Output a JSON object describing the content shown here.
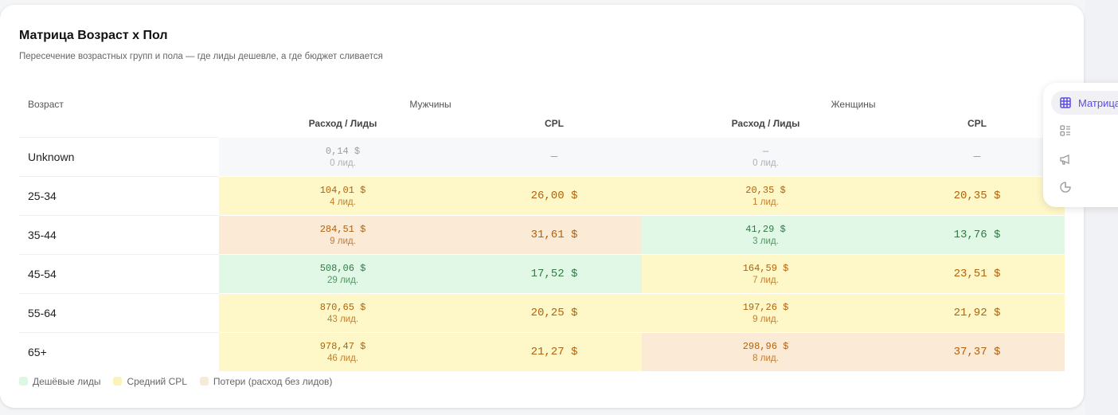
{
  "title": "Матрица Возраст х Пол",
  "subtitle": "Пересечение возрастных групп и пола — где лиды дешевле, а где бюджет сливается",
  "headers": {
    "age": "Возраст",
    "men": "Мужчины",
    "women": "Женщины",
    "spend_leads": "Расход / Лиды",
    "cpl": "CPL"
  },
  "rows": [
    {
      "age": "Unknown",
      "m_spend": "0,14 $",
      "m_leads": "0 лид.",
      "m_cpl": "—",
      "w_spend": "—",
      "w_leads": "0 лид.",
      "w_cpl": "—",
      "m_tone": "gray",
      "w_tone": "gray"
    },
    {
      "age": "25-34",
      "m_spend": "104,01 $",
      "m_leads": "4 лид.",
      "m_cpl": "26,00 $",
      "w_spend": "20,35 $",
      "w_leads": "1 лид.",
      "w_cpl": "20,35 $",
      "m_tone": "yellow",
      "w_tone": "yellow"
    },
    {
      "age": "35-44",
      "m_spend": "284,51 $",
      "m_leads": "9 лид.",
      "m_cpl": "31,61 $",
      "w_spend": "41,29 $",
      "w_leads": "3 лид.",
      "w_cpl": "13,76 $",
      "m_tone": "orange",
      "w_tone": "green"
    },
    {
      "age": "45-54",
      "m_spend": "508,06 $",
      "m_leads": "29 лид.",
      "m_cpl": "17,52 $",
      "w_spend": "164,59 $",
      "w_leads": "7 лид.",
      "w_cpl": "23,51 $",
      "m_tone": "green",
      "w_tone": "yellow"
    },
    {
      "age": "55-64",
      "m_spend": "870,65 $",
      "m_leads": "43 лид.",
      "m_cpl": "20,25 $",
      "w_spend": "197,26 $",
      "w_leads": "9 лид.",
      "w_cpl": "21,92 $",
      "m_tone": "yellow",
      "w_tone": "yellow"
    },
    {
      "age": "65+",
      "m_spend": "978,47 $",
      "m_leads": "46 лид.",
      "m_cpl": "21,27 $",
      "w_spend": "298,96 $",
      "w_leads": "8 лид.",
      "w_cpl": "37,37 $",
      "m_tone": "yellow",
      "w_tone": "orange"
    }
  ],
  "legend": [
    {
      "label": "Дешёвые лиды",
      "color": "#dcf7e3"
    },
    {
      "label": "Средний CPL",
      "color": "#fdf3b8"
    },
    {
      "label": "Потери (расход без лидов)",
      "color": "#f6ead8"
    }
  ],
  "side_nav": {
    "active_label": "Матрица",
    "items": [
      "grid-icon",
      "list-icon",
      "megaphone-icon",
      "pie-chart-icon"
    ],
    "accent": "#5a4ee6"
  }
}
